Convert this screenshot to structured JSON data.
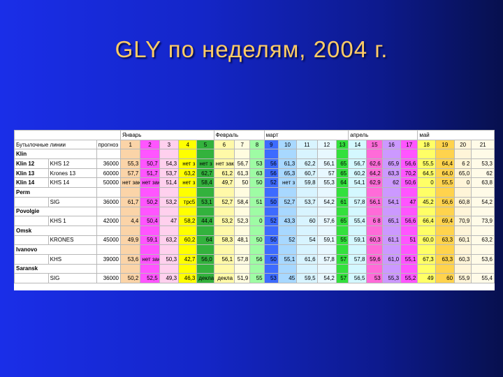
{
  "slide": {
    "title": "GLY по неделям, 2004 г."
  },
  "colors": {
    "w1": "#fbd4a8",
    "w2": "#ff55ff",
    "w3": "#ffd0ee",
    "w4": "#ffff00",
    "w5": "#33b23d",
    "w6": "#fff9a8",
    "w7": "#fffce0",
    "w8": "#9efca4",
    "w9": "#3d6bff",
    "w10": "#a8d8ff",
    "w11": "#d8f4ff",
    "w12": "#e8f8ff",
    "w13": "#33e03d",
    "w14": "#d4f8ff",
    "w15": "#ff6bd8",
    "w16": "#cc99ff",
    "w17": "#ff55ff",
    "w18": "#ffff66",
    "w19": "#ffd34d",
    "w20": "#fff5d8",
    "w21": "#fffbe8",
    "plan": "#ffffff",
    "group": "#ffffff"
  },
  "table": {
    "months": [
      "Январь",
      "Февраль",
      "март",
      "апрель",
      "май"
    ],
    "header_label": "Бутылочные линии",
    "plan_label": "прогноз",
    "weeks": [
      "1",
      "2",
      "3",
      "4",
      "5",
      "6",
      "7",
      "8",
      "9",
      "10",
      "11",
      "12",
      "13",
      "14",
      "15",
      "16",
      "17",
      "18",
      "19",
      "20",
      "21"
    ],
    "rows": [
      {
        "type": "group",
        "label": "Klin"
      },
      {
        "type": "line",
        "label": "Klin 12",
        "line": "KHS 12",
        "plan": "36000",
        "values": [
          "55,3",
          "50,7",
          "54,3",
          "нет з",
          "нет з",
          "нет зак",
          "56,7",
          "53",
          "56",
          "61,3",
          "62,2",
          "56,1",
          "65",
          "56,7",
          "62,6",
          "65,9",
          "56,6",
          "55,5",
          "64,4",
          "6 2",
          "53,3"
        ]
      },
      {
        "type": "line",
        "label": "Klin 13",
        "line": "Krones 13",
        "plan": "60000",
        "values": [
          "57,7",
          "51,7",
          "53,7",
          "63,2",
          "62,7",
          "61,2",
          "61,3",
          "63",
          "56",
          "65,3",
          "60,7",
          "57",
          "65",
          "60,2",
          "64,2",
          "63,3",
          "70,2",
          "64,5",
          "64,0",
          "65,0",
          "62"
        ]
      },
      {
        "type": "line",
        "label": "Klin 14",
        "line": "KHS 14",
        "plan": "50000",
        "values": [
          "нет зак",
          "нет зак",
          "51,4",
          "нет з",
          "58,4",
          "49,7",
          "50",
          "50",
          "52",
          "нет з",
          "59,8",
          "55,3",
          "64",
          "54,1",
          "62,9",
          "62",
          "50,6",
          "0",
          "55,5",
          "0",
          "63,8"
        ]
      },
      {
        "type": "group",
        "label": "Perm"
      },
      {
        "type": "line",
        "label": "",
        "line": "SIG",
        "plan": "36000",
        "values": [
          "61,7",
          "50,2",
          "53,2",
          "трс5",
          "53,1",
          "52,7",
          "58,4",
          "51",
          "50",
          "52,7",
          "53,7",
          "54,2",
          "61",
          "57,8",
          "56,1",
          "54,1",
          "47",
          "45,2",
          "56,6",
          "60,8",
          "54,2"
        ]
      },
      {
        "type": "group",
        "label": "Povolgie"
      },
      {
        "type": "line",
        "label": "",
        "line": "KHS 1",
        "plan": "42000",
        "values": [
          "4,4",
          "50,4",
          "47",
          "58,2",
          "44,4",
          "53,2",
          "52,3",
          "0",
          "52",
          "43,3",
          "60",
          "57,6",
          "65",
          "55,4",
          "6 8",
          "65,1",
          "56,6",
          "66,4",
          "69,4",
          "70,9",
          "73,9"
        ]
      },
      {
        "type": "group",
        "label": "Omsk"
      },
      {
        "type": "line",
        "label": "",
        "line": "KRONES",
        "plan": "45000",
        "values": [
          "49,9",
          "59,1",
          "63,2",
          "60,2",
          "64",
          "58,3",
          "48,1",
          "50",
          "50",
          "52",
          "54",
          "59,1",
          "55",
          "59,1",
          "60,3",
          "61,1",
          "51",
          "60,0",
          "63,3",
          "60,1",
          "63,2"
        ]
      },
      {
        "type": "group",
        "label": "Ivanovo"
      },
      {
        "type": "line",
        "label": "",
        "line": "KHS",
        "plan": "39000",
        "values": [
          "53,6",
          "нет зак",
          "50,3",
          "42,7",
          "56,0",
          "56,1",
          "57,8",
          "56",
          "50",
          "55,1",
          "61,6",
          "57,8",
          "57",
          "57,8",
          "59,6",
          "61,0",
          "55,1",
          "67,3",
          "63,3",
          "60,3",
          "53,6"
        ]
      },
      {
        "type": "group",
        "label": "Saransk"
      },
      {
        "type": "line",
        "label": "",
        "line": "SIG",
        "plan": "36000",
        "values": [
          "50,2",
          "52,5",
          "49,3",
          "46,3",
          "декла",
          "декла",
          "51,9",
          "55",
          "53",
          "45",
          "59,5",
          "54,2",
          "57",
          "56,5",
          "53",
          "55,3",
          "55,2",
          "49",
          "60",
          "55,9",
          "55,4"
        ]
      }
    ]
  }
}
